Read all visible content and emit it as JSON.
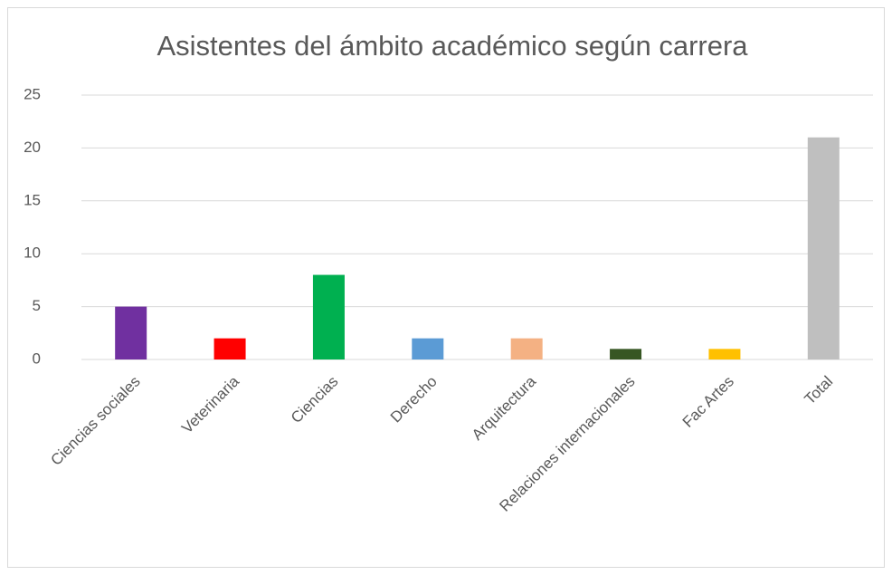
{
  "chart_data": {
    "type": "bar",
    "title": "Asistentes del ámbito académico según carrera",
    "categories": [
      "Ciencias sociales",
      "Veterinaria",
      "Ciencias",
      "Derecho",
      "Arquitectura",
      "Relaciones internacionales",
      "Fac Artes",
      "Total"
    ],
    "values": [
      5,
      2,
      8,
      2,
      2,
      1,
      1,
      21
    ],
    "colors": [
      "#7030a0",
      "#ff0000",
      "#00b050",
      "#5b9bd5",
      "#f4b183",
      "#375623",
      "#ffc000",
      "#bfbfbf"
    ],
    "ylim": [
      0,
      25
    ],
    "yticks": [
      0,
      5,
      10,
      15,
      20,
      25
    ],
    "grid": true
  }
}
